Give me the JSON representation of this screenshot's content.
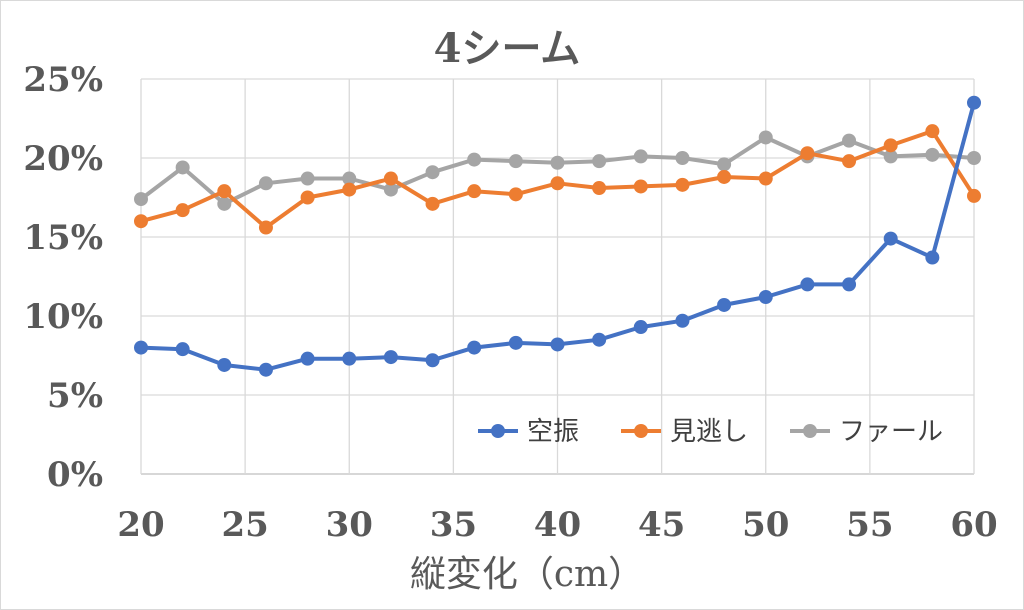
{
  "chart_data": {
    "type": "line",
    "title": "4シーム",
    "xlabel": "縦変化（cm）",
    "ylabel": "",
    "x": [
      20,
      22,
      24,
      26,
      28,
      30,
      32,
      34,
      36,
      38,
      40,
      42,
      44,
      46,
      48,
      50,
      52,
      54,
      56,
      58,
      60
    ],
    "xlim": [
      20,
      60
    ],
    "ylim": [
      0,
      25
    ],
    "x_ticks": [
      "20",
      "25",
      "30",
      "35",
      "40",
      "45",
      "50",
      "55",
      "60"
    ],
    "y_ticks": [
      "0%",
      "5%",
      "10%",
      "15%",
      "20%",
      "25%"
    ],
    "grid": true,
    "legend_position": "bottom-right",
    "series": [
      {
        "name": "空振",
        "color": "#4472C4",
        "values": [
          8.0,
          7.9,
          6.9,
          6.6,
          7.3,
          7.3,
          7.4,
          7.2,
          8.0,
          8.3,
          8.2,
          8.5,
          9.3,
          9.7,
          10.7,
          11.2,
          12.0,
          12.0,
          14.9,
          13.7,
          23.5
        ]
      },
      {
        "name": "見逃し",
        "color": "#ED7D31",
        "values": [
          16.0,
          16.7,
          17.9,
          15.6,
          17.5,
          18.0,
          18.7,
          17.1,
          17.9,
          17.7,
          18.4,
          18.1,
          18.2,
          18.3,
          18.8,
          18.7,
          20.3,
          19.8,
          20.8,
          21.7,
          17.6
        ]
      },
      {
        "name": "ファール",
        "color": "#A5A5A5",
        "values": [
          17.4,
          19.4,
          17.1,
          18.4,
          18.7,
          18.7,
          18.0,
          19.1,
          19.9,
          19.8,
          19.7,
          19.8,
          20.1,
          20.0,
          19.6,
          21.3,
          20.1,
          21.1,
          20.1,
          20.2,
          20.0
        ]
      }
    ]
  }
}
